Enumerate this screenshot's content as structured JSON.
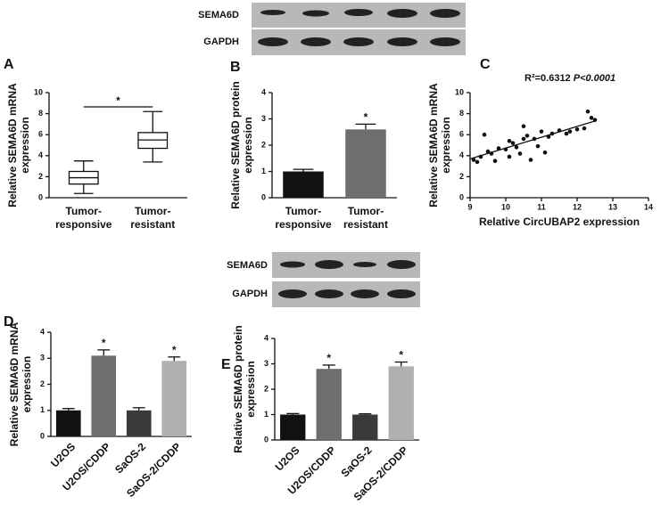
{
  "blots": [
    {
      "labels": [
        "SEMA6D",
        "GAPDH"
      ]
    },
    {
      "labels": [
        "SEMA6D",
        "GAPDH"
      ]
    }
  ],
  "chart_data": [
    {
      "type": "box",
      "panel": "A",
      "y_label": [
        "Relative SEMA6D mRNA",
        "expression"
      ],
      "categories": [
        [
          "Tumor-",
          "responsive"
        ],
        [
          "Tumor-",
          "resistant"
        ]
      ],
      "boxes": [
        {
          "min": 0.4,
          "q1": 1.3,
          "median": 1.9,
          "q3": 2.5,
          "max": 3.5
        },
        {
          "min": 3.4,
          "q1": 4.7,
          "median": 5.5,
          "q3": 6.2,
          "max": 8.2
        }
      ],
      "significance_label": "*",
      "ylim": [
        0,
        10
      ],
      "yticks": [
        0,
        2,
        4,
        6,
        8,
        10
      ]
    },
    {
      "type": "bar",
      "panel": "B",
      "y_label": [
        "Relative SEMA6D protein",
        "expression"
      ],
      "categories": [
        [
          "Tumor-",
          "responsive"
        ],
        [
          "Tumor-",
          "resistant"
        ]
      ],
      "values": [
        1.0,
        2.6
      ],
      "errors": [
        0.08,
        0.2
      ],
      "colors": [
        "#111111",
        "#6e6e6e"
      ],
      "significance": [
        null,
        "*"
      ],
      "ylim": [
        0,
        4
      ],
      "yticks": [
        0,
        1,
        2,
        3,
        4
      ]
    },
    {
      "type": "scatter",
      "panel": "C",
      "annotation": [
        "R²=0.6312",
        "P<0.0001"
      ],
      "y_label": [
        "Relative SEMA6D mRNA",
        "expression"
      ],
      "x_label": "Relative CircUBAP2 expression",
      "x": [
        9.1,
        9.2,
        9.3,
        9.4,
        9.5,
        9.6,
        9.7,
        9.8,
        10.0,
        10.1,
        10.2,
        10.1,
        10.3,
        10.4,
        10.5,
        10.5,
        10.6,
        10.7,
        10.8,
        10.9,
        11.0,
        11.1,
        11.2,
        11.3,
        11.5,
        11.7,
        11.8,
        12.0,
        12.2,
        12.3,
        12.4,
        12.5
      ],
      "y": [
        3.6,
        3.4,
        3.9,
        6.0,
        4.4,
        4.2,
        3.5,
        4.7,
        4.6,
        5.4,
        5.2,
        3.9,
        4.8,
        4.2,
        5.6,
        6.8,
        5.9,
        3.6,
        5.6,
        4.9,
        6.3,
        4.3,
        5.8,
        6.1,
        6.4,
        6.1,
        6.3,
        6.5,
        6.6,
        8.2,
        7.6,
        7.4
      ],
      "fit": {
        "x": [
          9.0,
          12.5
        ],
        "y": [
          3.7,
          7.3
        ]
      },
      "xlim": [
        9,
        14
      ],
      "xticks": [
        9,
        10,
        11,
        12,
        13,
        14
      ],
      "ylim": [
        0,
        10
      ],
      "yticks": [
        0,
        2,
        4,
        6,
        8,
        10
      ]
    },
    {
      "type": "bar",
      "panel": "D",
      "y_label": [
        "Relative SEMA6D mRNA",
        "expression"
      ],
      "categories": [
        [
          "U2OS"
        ],
        [
          "U2OS/CDDP"
        ],
        [
          "SaOS-2"
        ],
        [
          "SaOS-2/CDDP"
        ]
      ],
      "values": [
        1.0,
        3.1,
        1.0,
        2.9
      ],
      "errors": [
        0.07,
        0.22,
        0.1,
        0.15
      ],
      "colors": [
        "#111111",
        "#6e6e6e",
        "#3a3a3a",
        "#b0b0b0"
      ],
      "significance": [
        null,
        "*",
        null,
        "*"
      ],
      "ylim": [
        0,
        4
      ],
      "yticks": [
        0,
        1,
        2,
        3,
        4
      ]
    },
    {
      "type": "bar",
      "panel": "E",
      "y_label": [
        "Relative SEMA6D protein",
        "expression"
      ],
      "categories": [
        [
          "U2OS"
        ],
        [
          "U2OS/CDDP"
        ],
        [
          "SaOS-2"
        ],
        [
          "SaOS-2/CDDP"
        ]
      ],
      "values": [
        1.0,
        2.8,
        1.0,
        2.9
      ],
      "errors": [
        0.04,
        0.15,
        0.03,
        0.17
      ],
      "colors": [
        "#111111",
        "#6e6e6e",
        "#3a3a3a",
        "#b0b0b0"
      ],
      "significance": [
        null,
        "*",
        null,
        "*"
      ],
      "ylim": [
        0,
        4
      ],
      "yticks": [
        0,
        1,
        2,
        3,
        4
      ]
    }
  ]
}
